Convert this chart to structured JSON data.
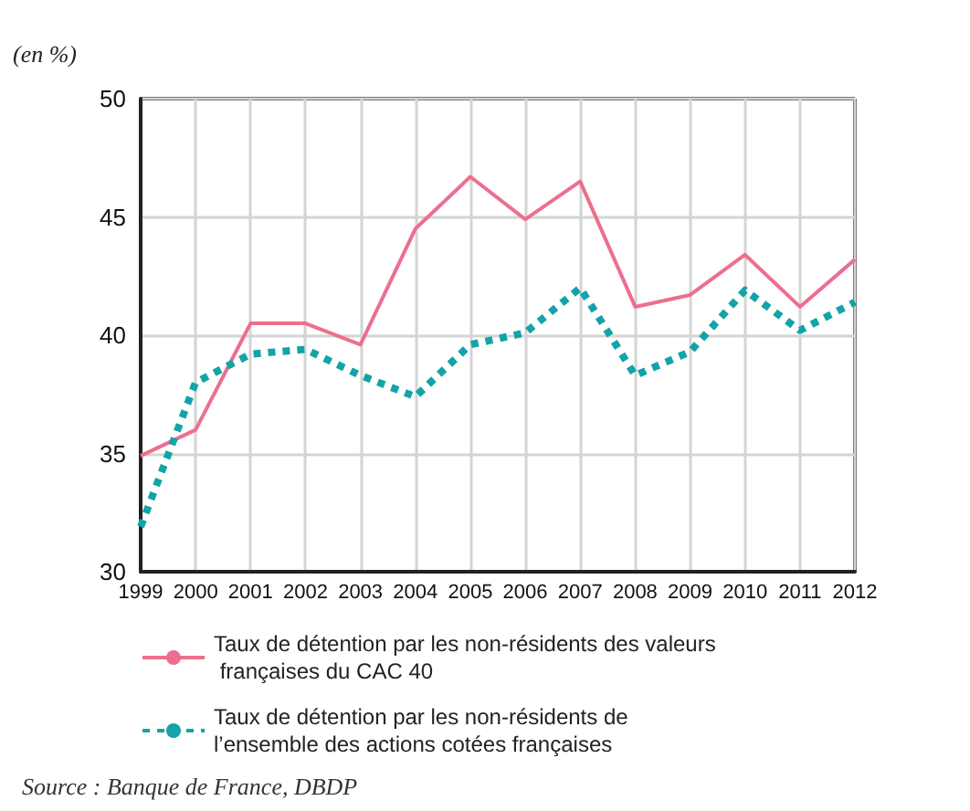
{
  "chart_data": {
    "type": "line",
    "ylabel": "(en %)",
    "categories": [
      "1999",
      "2000",
      "2001",
      "2002",
      "2003",
      "2004",
      "2005",
      "2006",
      "2007",
      "2008",
      "2009",
      "2010",
      "2011",
      "2012"
    ],
    "series": [
      {
        "name": "Taux de détention par les non-résidents des valeurs françaises du CAC 40",
        "color": "#ec6f8e",
        "line_style": "solid",
        "values": [
          34.9,
          36.0,
          40.5,
          40.5,
          39.6,
          44.5,
          46.7,
          44.9,
          46.5,
          41.2,
          41.7,
          43.4,
          41.2,
          43.2
        ]
      },
      {
        "name": "Taux de détention par les non-résidents de l’ensemble des actions cotées françaises",
        "color": "#13a3a8",
        "line_style": "dotted",
        "values": [
          31.9,
          38.0,
          39.2,
          39.4,
          38.3,
          37.4,
          39.6,
          40.1,
          42.0,
          38.3,
          39.3,
          41.9,
          40.2,
          41.4
        ]
      }
    ],
    "ylim": [
      30,
      50
    ],
    "yticks": [
      30,
      35,
      40,
      45,
      50
    ],
    "grid": true,
    "legend": "bottom",
    "annotations": [
      "Source : Banque de France, DBDP"
    ]
  }
}
